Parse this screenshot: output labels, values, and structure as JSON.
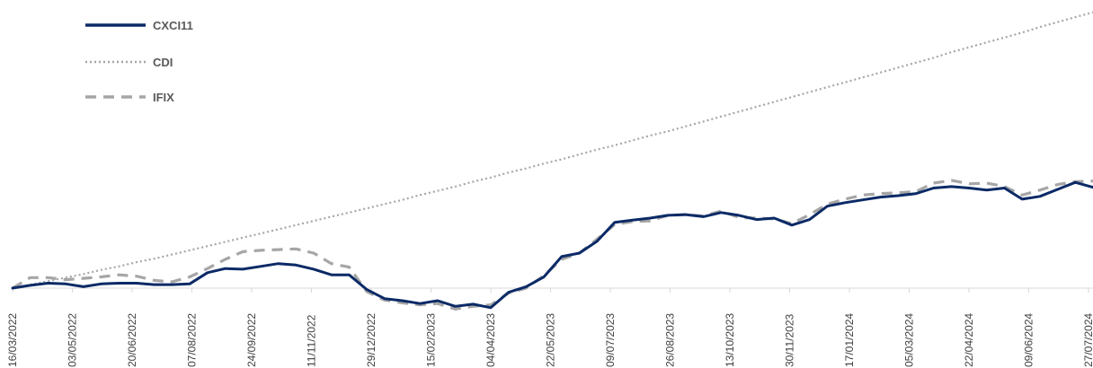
{
  "chart_data": {
    "type": "line",
    "title": "",
    "xlabel": "",
    "ylabel": "",
    "x_ticks": [
      "16/03/2022",
      "03/05/2022",
      "20/06/2022",
      "07/08/2022",
      "24/09/2022",
      "11/11/2022",
      "29/12/2022",
      "15/02/2023",
      "04/04/2023",
      "22/05/2023",
      "09/07/2023",
      "26/08/2023",
      "13/10/2023",
      "30/11/2023",
      "17/01/2024",
      "05/03/2024",
      "22/04/2024",
      "09/06/2024",
      "27/07/2024"
    ],
    "y_axis_visible": false,
    "grid": false,
    "legend_position": "top-left",
    "series": [
      {
        "name": "CXCI11",
        "style": "solid",
        "color": "#0b2a66",
        "values": [
          0,
          4,
          7,
          6,
          2,
          6,
          7,
          7,
          5,
          5,
          6,
          22,
          28,
          27,
          31,
          35,
          33,
          27,
          19,
          19,
          -2,
          -15,
          -18,
          -22,
          -18,
          -26,
          -23,
          -28,
          -6,
          2,
          16,
          45,
          50,
          67,
          94,
          97,
          100,
          104,
          105,
          102,
          108,
          104,
          98,
          100,
          90,
          98,
          117,
          122,
          126,
          130,
          132,
          135,
          143,
          145,
          143,
          140,
          143,
          127,
          131,
          141,
          151,
          144
        ]
      },
      {
        "name": "CDI",
        "style": "dotted",
        "color": "#a6a6a6",
        "values": [
          0,
          5,
          10,
          15,
          20,
          26,
          31,
          37,
          42,
          48,
          54,
          60,
          66,
          72,
          78,
          84,
          90,
          96,
          102,
          108,
          114,
          120,
          126,
          133,
          139,
          145,
          152,
          158,
          165,
          171,
          178,
          184,
          191,
          198,
          204,
          211,
          218,
          224,
          231,
          238,
          245,
          252,
          259,
          266,
          273,
          280,
          287,
          294,
          301,
          308,
          315,
          322,
          329,
          337,
          344,
          351,
          358,
          365,
          373,
          380,
          387,
          394
        ]
      },
      {
        "name": "IFIX",
        "style": "dashed",
        "color": "#a6a6a6",
        "values": [
          0,
          15,
          15,
          12,
          14,
          16,
          19,
          17,
          11,
          9,
          16,
          28,
          41,
          52,
          54,
          55,
          56,
          50,
          35,
          30,
          -5,
          -17,
          -21,
          -24,
          -22,
          -30,
          -26,
          -24,
          -7,
          0,
          18,
          41,
          50,
          70,
          91,
          95,
          96,
          104,
          105,
          103,
          110,
          101,
          100,
          99,
          92,
          105,
          120,
          127,
          133,
          135,
          136,
          138,
          150,
          154,
          149,
          150,
          145,
          133,
          140,
          148,
          152,
          153
        ]
      }
    ],
    "legend": [
      {
        "label": "CXCI11",
        "style": "solid"
      },
      {
        "label": "CDI",
        "style": "dotted"
      },
      {
        "label": "IFIX",
        "style": "dashed"
      }
    ]
  }
}
